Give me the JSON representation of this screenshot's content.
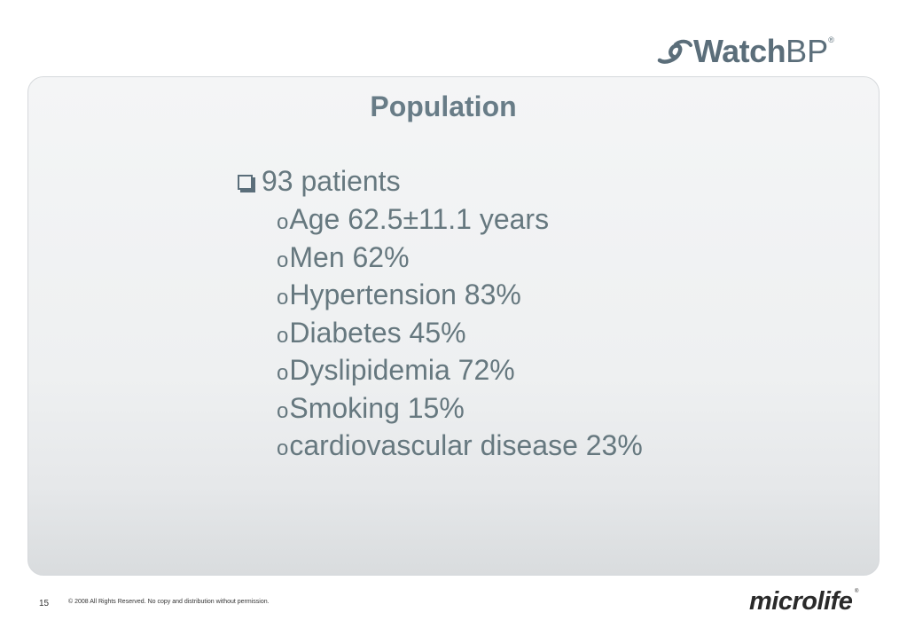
{
  "brand": {
    "top_logo_word": "Watch",
    "top_logo_bp": "BP",
    "top_logo_mark": "®",
    "bottom_logo": "microlife",
    "bottom_logo_mark": "®",
    "logo_color": "#5b6e7a"
  },
  "slide": {
    "title": "Population",
    "main_bullet": "93 patients",
    "sub_bullet_symbol": "o",
    "sub_items": [
      "Age 62.5±11.1 years",
      "Men 62%",
      "Hypertension 83%",
      "Diabetes 45%",
      "Dyslipidemia 72%",
      "Smoking 15%",
      "cardiovascular disease 23%"
    ],
    "text_color": "#66787f"
  },
  "footer": {
    "page_number": "15",
    "copyright": "© 2008 All Rights Reserved. No copy and distribution without permission."
  },
  "icons": {
    "top_logo_icon": "watchbp-swoosh-icon",
    "main_bullet_icon": "box-bullet-icon"
  }
}
